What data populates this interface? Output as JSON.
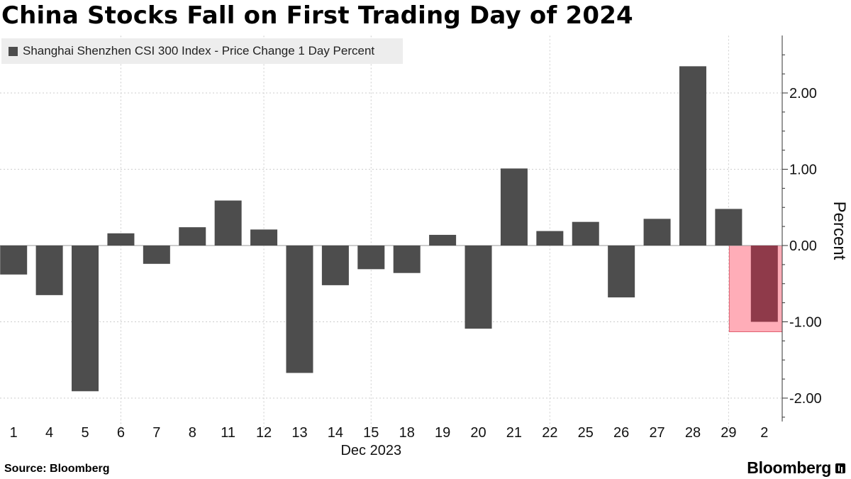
{
  "header": {
    "title": "China Stocks Fall on First Trading Day of 2024"
  },
  "footer": {
    "source": "Source: Bloomberg",
    "brand": "Bloomberg"
  },
  "chart_data": {
    "type": "bar",
    "title": "China Stocks Fall on First Trading Day of 2024",
    "legend": [
      "Shanghai Shenzhen CSI 300 Index - Price Change 1 Day Percent"
    ],
    "legend_placement": "top-left",
    "categories": [
      "1",
      "4",
      "5",
      "6",
      "7",
      "8",
      "11",
      "12",
      "13",
      "14",
      "15",
      "18",
      "19",
      "20",
      "21",
      "22",
      "25",
      "26",
      "27",
      "28",
      "29",
      "2"
    ],
    "xlabel": "Dec 2023",
    "ylabel": "Percent",
    "series": [
      {
        "name": "Shanghai Shenzhen CSI 300 Index - Price Change 1 Day Percent",
        "values": [
          -0.38,
          -0.65,
          -1.91,
          0.16,
          -0.24,
          0.24,
          0.59,
          0.21,
          -1.67,
          -0.52,
          -0.31,
          -0.36,
          0.14,
          -1.09,
          1.01,
          0.19,
          0.31,
          -0.68,
          0.35,
          2.35,
          0.48,
          -1.0
        ]
      }
    ],
    "yticks": [
      -2.0,
      -1.0,
      0.0,
      1.0,
      2.0
    ],
    "ytick_labels": [
      "-2.00",
      "-1.00",
      "0.00",
      "1.00",
      "2.00"
    ],
    "ylim": [
      -2.3,
      2.75
    ],
    "y_axis_side": "right",
    "grid": true,
    "highlight": {
      "category": "2",
      "color": "#ffadb8",
      "bar_color": "#8f3a4a"
    },
    "colors": {
      "bar": "#4d4d4d",
      "grid": "#cccccc"
    }
  }
}
